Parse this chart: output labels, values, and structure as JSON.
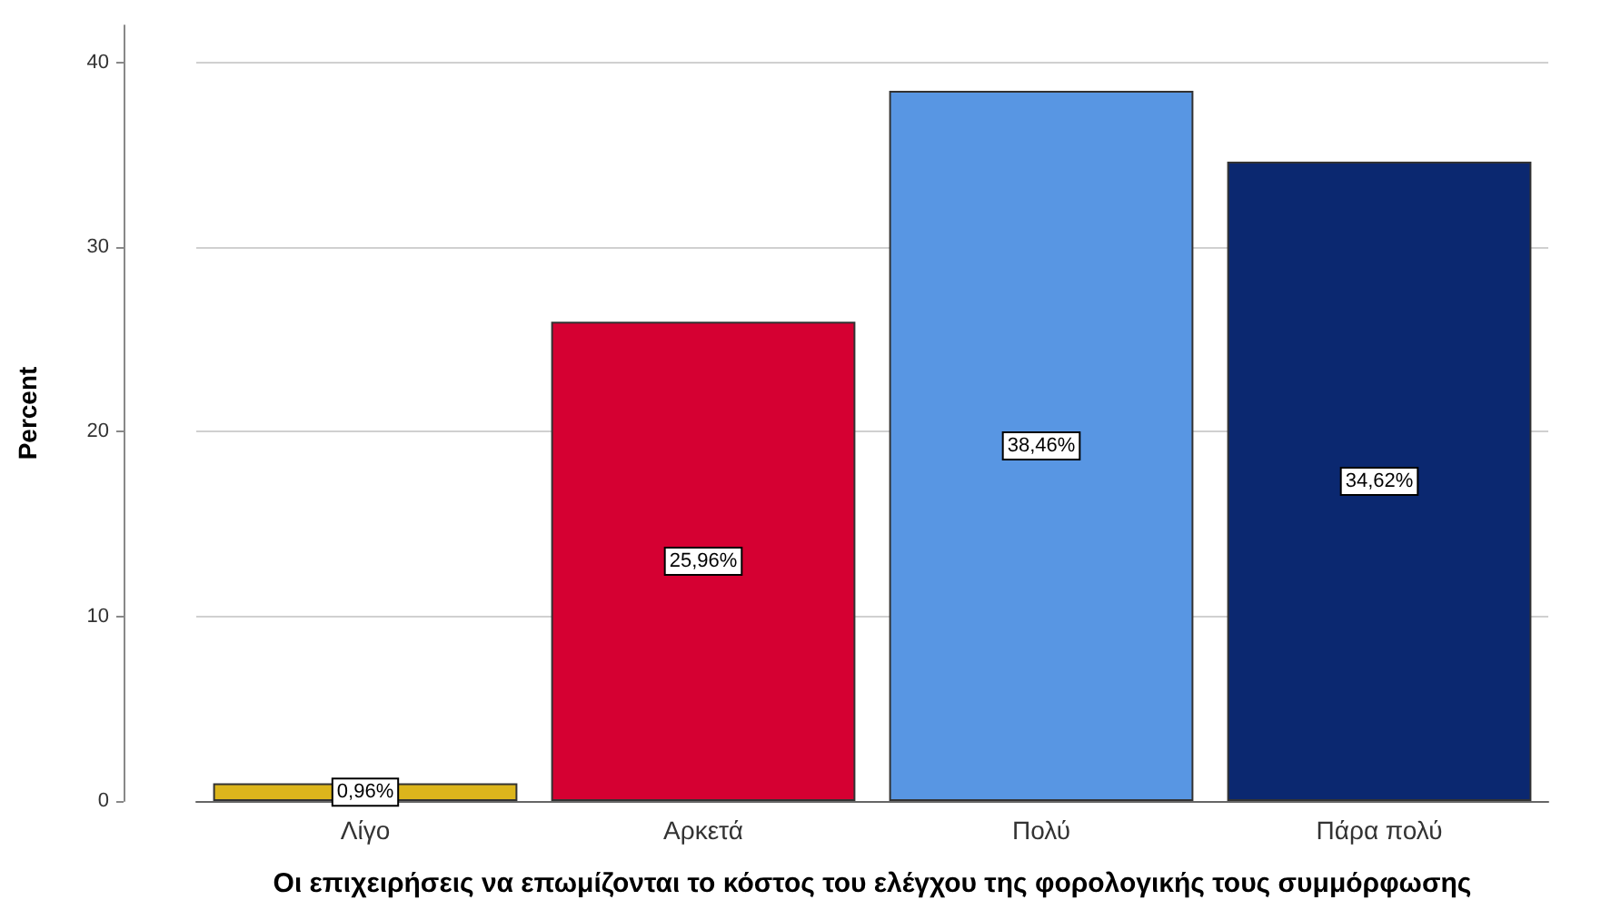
{
  "chart_data": {
    "type": "bar",
    "xlabel": "Οι επιχειρήσεις να επωμίζονται το κόστος του ελέγχου της φορολογικής τους συμμόρφωσης",
    "ylabel": "Percent",
    "categories": [
      "Λίγο",
      "Αρκετά",
      "Πολύ",
      "Πάρα πολύ"
    ],
    "values": [
      0.96,
      25.96,
      38.46,
      34.62
    ],
    "value_labels": [
      "0,96%",
      "25,96%",
      "38,46%",
      "34,62%"
    ],
    "colors": [
      "#dcb51c",
      "#d50032",
      "#5896e3",
      "#0b2870"
    ],
    "ylim": [
      0,
      42
    ],
    "yticks": [
      0,
      10,
      20,
      30,
      40
    ],
    "grid": "y"
  }
}
